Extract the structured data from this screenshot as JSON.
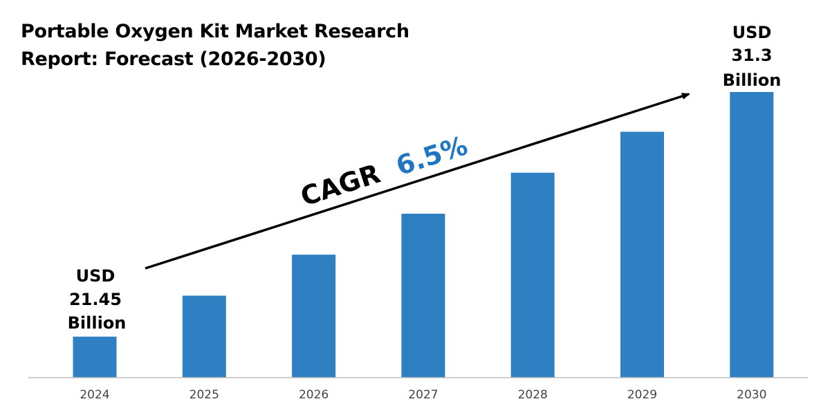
{
  "chart_data": {
    "type": "bar",
    "title": "Portable Oxygen Kit Market Research Report: Forecast (2026-2030)",
    "categories": [
      "2024",
      "2025",
      "2026",
      "2027",
      "2028",
      "2029",
      "2030"
    ],
    "values": [
      21.45,
      23.1,
      24.75,
      26.4,
      28.05,
      29.7,
      31.3
    ],
    "xlabel": "",
    "ylabel": "",
    "ylim": [
      19.8,
      31.3
    ],
    "grid": false,
    "legend": "none",
    "bar_color": "#2E80C3",
    "annotations": {
      "start": {
        "line1": "USD",
        "line2": "21.45",
        "line3": "Billion"
      },
      "end": {
        "line1": "USD",
        "line2": "31.3",
        "line3": "Billion"
      },
      "cagr_label": "CAGR",
      "cagr_value": "6.5%",
      "cagr_color": "#1F77C4"
    }
  }
}
